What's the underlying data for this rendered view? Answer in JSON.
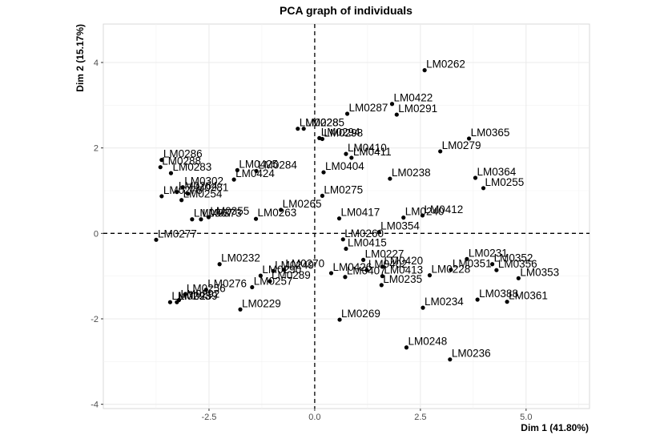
{
  "chart_data": {
    "type": "scatter",
    "title": "PCA graph of individuals",
    "xlabel": "Dim 1 (41.80%)",
    "ylabel": "Dim 2 (15.17%)",
    "xlim": [
      -5.0,
      6.5
    ],
    "ylim": [
      -4.1,
      4.9
    ],
    "xticks": [
      -2.5,
      0.0,
      2.5,
      5.0
    ],
    "xtick_labels": [
      "-2.5",
      "0.0",
      "2.5",
      "5.0"
    ],
    "yticks": [
      -4,
      -2,
      0,
      2,
      4
    ],
    "ytick_labels": [
      "-4",
      "-2",
      "0",
      "2",
      "4"
    ],
    "grid": true,
    "reference_lines": {
      "x": 0,
      "y": 0,
      "style": "dashed"
    },
    "point_color": "#000000",
    "points": [
      {
        "label": "LM0262",
        "x": 2.6,
        "y": 3.82
      },
      {
        "label": "LM0422",
        "x": 1.83,
        "y": 3.03
      },
      {
        "label": "LM0287",
        "x": 0.77,
        "y": 2.8
      },
      {
        "label": "LM0291",
        "x": 1.94,
        "y": 2.78
      },
      {
        "label": "LM0228",
        "x": -0.4,
        "y": 2.45
      },
      {
        "label": "LM0285",
        "x": -0.26,
        "y": 2.45
      },
      {
        "label": "LM0294",
        "x": 0.11,
        "y": 2.23
      },
      {
        "label": "LM0298",
        "x": 0.18,
        "y": 2.21
      },
      {
        "label": "LM0365",
        "x": 3.65,
        "y": 2.22
      },
      {
        "label": "LM0279",
        "x": 2.97,
        "y": 1.92
      },
      {
        "label": "LM0410",
        "x": 0.74,
        "y": 1.86
      },
      {
        "label": "LM0411",
        "x": 0.87,
        "y": 1.77
      },
      {
        "label": "LM0286",
        "x": -3.62,
        "y": 1.72
      },
      {
        "label": "LM0288",
        "x": -3.65,
        "y": 1.55
      },
      {
        "label": "LM0283",
        "x": -3.4,
        "y": 1.41
      },
      {
        "label": "LM0425",
        "x": -1.83,
        "y": 1.48
      },
      {
        "label": "LM0284",
        "x": -1.38,
        "y": 1.46
      },
      {
        "label": "LM0404",
        "x": 0.21,
        "y": 1.43
      },
      {
        "label": "LM0238",
        "x": 1.78,
        "y": 1.28
      },
      {
        "label": "LM0364",
        "x": 3.8,
        "y": 1.3
      },
      {
        "label": "LM0255",
        "x": 3.99,
        "y": 1.06
      },
      {
        "label": "LM0424",
        "x": -1.91,
        "y": 1.26
      },
      {
        "label": "LM0302",
        "x": -3.12,
        "y": 1.08
      },
      {
        "label": "LM0264",
        "x": -3.26,
        "y": 0.97
      },
      {
        "label": "LM0281",
        "x": -3.0,
        "y": 0.93
      },
      {
        "label": "LM0278",
        "x": -3.62,
        "y": 0.87
      },
      {
        "label": "LM0275",
        "x": 0.18,
        "y": 0.88
      },
      {
        "label": "LM0254",
        "x": -3.15,
        "y": 0.78
      },
      {
        "label": "LM0265",
        "x": -0.8,
        "y": 0.55
      },
      {
        "label": "LM0412",
        "x": 2.55,
        "y": 0.42
      },
      {
        "label": "LM0240",
        "x": 2.1,
        "y": 0.37
      },
      {
        "label": "LM0355",
        "x": -2.51,
        "y": 0.38
      },
      {
        "label": "LM0367",
        "x": -2.9,
        "y": 0.33
      },
      {
        "label": "LM0373",
        "x": -2.69,
        "y": 0.33
      },
      {
        "label": "LM0417",
        "x": 0.58,
        "y": 0.35
      },
      {
        "label": "LM0263",
        "x": -1.39,
        "y": 0.34
      },
      {
        "label": "LM0354",
        "x": 1.52,
        "y": 0.03
      },
      {
        "label": "LM0277",
        "x": -3.75,
        "y": -0.15
      },
      {
        "label": "LM0260",
        "x": 0.67,
        "y": -0.14
      },
      {
        "label": "LM0415",
        "x": 0.74,
        "y": -0.36
      },
      {
        "label": "LM0231",
        "x": 3.6,
        "y": -0.6
      },
      {
        "label": "LM0227",
        "x": 1.15,
        "y": -0.62
      },
      {
        "label": "LM0352",
        "x": 4.2,
        "y": -0.72
      },
      {
        "label": "LM0420",
        "x": 1.6,
        "y": -0.78
      },
      {
        "label": "LM0351",
        "x": 3.22,
        "y": -0.85
      },
      {
        "label": "LM0356",
        "x": 4.3,
        "y": -0.86
      },
      {
        "label": "LM0228",
        "x": 2.72,
        "y": -0.98
      },
      {
        "label": "LM0232",
        "x": -2.25,
        "y": -0.72
      },
      {
        "label": "LM0402",
        "x": 1.23,
        "y": -0.86
      },
      {
        "label": "LM0413",
        "x": 1.6,
        "y": -1.0
      },
      {
        "label": "LM0353",
        "x": 4.82,
        "y": -1.05
      },
      {
        "label": "LM0235",
        "x": 1.58,
        "y": -1.21
      },
      {
        "label": "LM0407",
        "x": 0.72,
        "y": -1.02
      },
      {
        "label": "LM0426",
        "x": 0.39,
        "y": -0.93
      },
      {
        "label": "LM0270",
        "x": -0.73,
        "y": -0.85
      },
      {
        "label": "LM0249",
        "x": -0.98,
        "y": -0.88
      },
      {
        "label": "LM0290",
        "x": -1.28,
        "y": -0.99
      },
      {
        "label": "LM0289",
        "x": -1.06,
        "y": -1.12
      },
      {
        "label": "LM0257",
        "x": -1.48,
        "y": -1.26
      },
      {
        "label": "LM0229",
        "x": -1.76,
        "y": -1.78
      },
      {
        "label": "LM0256",
        "x": -3.07,
        "y": -1.43
      },
      {
        "label": "LM0276",
        "x": -2.57,
        "y": -1.32
      },
      {
        "label": "LM0292",
        "x": -3.21,
        "y": -1.56
      },
      {
        "label": "LM0293",
        "x": -3.42,
        "y": -1.61
      },
      {
        "label": "LM0259",
        "x": -3.26,
        "y": -1.61
      },
      {
        "label": "LM0388",
        "x": 3.85,
        "y": -1.55
      },
      {
        "label": "LM0361",
        "x": 4.55,
        "y": -1.6
      },
      {
        "label": "LM0234",
        "x": 2.56,
        "y": -1.74
      },
      {
        "label": "LM0269",
        "x": 0.59,
        "y": -2.02
      },
      {
        "label": "LM0248",
        "x": 2.17,
        "y": -2.67
      },
      {
        "label": "LM0236",
        "x": 3.2,
        "y": -2.95
      }
    ]
  }
}
